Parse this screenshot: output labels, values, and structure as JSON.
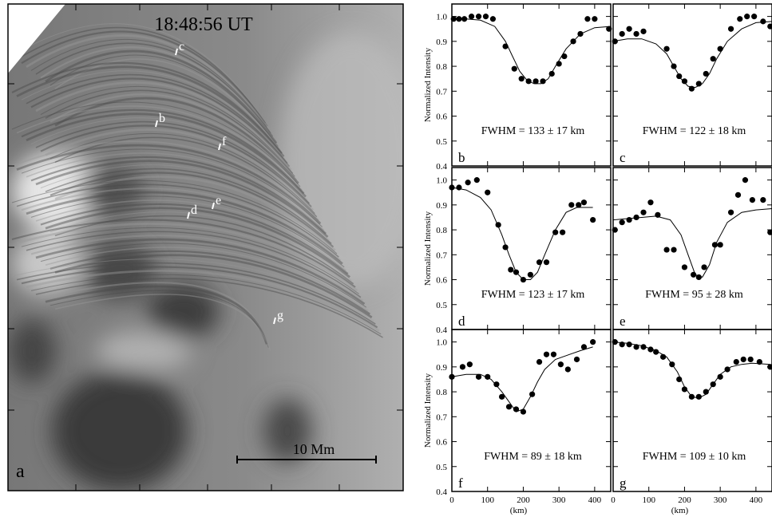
{
  "chart_data": [
    {
      "type": "image",
      "title": "18:48:56 UT",
      "annotations": [
        "c",
        "b",
        "f",
        "d",
        "e",
        "g"
      ],
      "scale_bar": "10 Mm",
      "panel_label": "a"
    },
    {
      "type": "scatter",
      "label": "b",
      "annotation": "FWHM = 133 ± 17 km",
      "ylabel": "Normalized Intensity",
      "color": "#000",
      "xlim": [
        0,
        445
      ],
      "ylim": [
        0.4,
        1.05
      ],
      "xticks": [
        0,
        100,
        200,
        300,
        400
      ],
      "yticks": [
        0.4,
        0.5,
        0.6,
        0.7,
        0.8,
        0.9,
        {
          "value": 1,
          "label": "1.0"
        }
      ],
      "x": [
        5,
        20,
        35,
        55,
        75,
        95,
        115,
        150,
        175,
        195,
        215,
        235,
        255,
        280,
        300,
        315,
        340,
        360,
        380,
        400,
        440
      ],
      "values": [
        0.99,
        0.99,
        0.99,
        1.0,
        1.0,
        1.0,
        0.99,
        0.88,
        0.79,
        0.75,
        0.74,
        0.74,
        0.74,
        0.77,
        0.81,
        0.84,
        0.9,
        0.93,
        0.99,
        0.99,
        0.95
      ],
      "fit_x": [
        0,
        40,
        80,
        120,
        150,
        170,
        190,
        210,
        230,
        250,
        270,
        290,
        320,
        360,
        400,
        445
      ],
      "fit_values": [
        0.99,
        0.99,
        0.985,
        0.96,
        0.9,
        0.84,
        0.78,
        0.745,
        0.73,
        0.73,
        0.75,
        0.8,
        0.87,
        0.93,
        0.955,
        0.96
      ]
    },
    {
      "type": "scatter",
      "label": "c",
      "annotation": "FWHM = 122 ± 18 km",
      "color": "#000",
      "xlim": [
        0,
        445
      ],
      "ylim": [
        0.4,
        1.05
      ],
      "xticks": [
        0,
        100,
        200,
        300,
        400
      ],
      "yticks": [
        0.4,
        0.5,
        0.6,
        0.7,
        0.8,
        0.9,
        1
      ],
      "x": [
        5,
        25,
        45,
        65,
        85,
        150,
        170,
        185,
        200,
        220,
        240,
        260,
        280,
        300,
        330,
        355,
        375,
        395,
        420,
        440
      ],
      "values": [
        0.9,
        0.93,
        0.95,
        0.93,
        0.94,
        0.87,
        0.8,
        0.76,
        0.74,
        0.71,
        0.73,
        0.77,
        0.83,
        0.87,
        0.95,
        0.99,
        1.0,
        1.0,
        0.98,
        0.96
      ],
      "fit_x": [
        0,
        40,
        80,
        120,
        150,
        170,
        190,
        210,
        230,
        250,
        270,
        290,
        320,
        360,
        400,
        445
      ],
      "fit_values": [
        0.9,
        0.91,
        0.91,
        0.89,
        0.85,
        0.8,
        0.75,
        0.72,
        0.715,
        0.73,
        0.77,
        0.83,
        0.9,
        0.95,
        0.975,
        0.98
      ]
    },
    {
      "type": "scatter",
      "label": "d",
      "annotation": "FWHM = 123 ± 17 km",
      "ylabel": "Normalized Intensity",
      "color": "#000",
      "xlim": [
        0,
        445
      ],
      "ylim": [
        0.4,
        1.05
      ],
      "xticks": [
        0,
        100,
        200,
        300,
        400
      ],
      "yticks": [
        0.4,
        0.5,
        0.6,
        0.7,
        0.8,
        0.9,
        {
          "value": 1,
          "label": "1.0"
        }
      ],
      "x": [
        0,
        20,
        45,
        70,
        100,
        130,
        150,
        165,
        180,
        200,
        220,
        245,
        265,
        290,
        310,
        335,
        355,
        370,
        395
      ],
      "values": [
        0.97,
        0.97,
        0.99,
        1.0,
        0.95,
        0.82,
        0.73,
        0.64,
        0.63,
        0.6,
        0.62,
        0.67,
        0.67,
        0.79,
        0.79,
        0.9,
        0.9,
        0.91,
        0.84
      ],
      "fit_x": [
        0,
        40,
        80,
        110,
        140,
        160,
        180,
        200,
        220,
        240,
        260,
        290,
        320,
        350,
        395
      ],
      "fit_values": [
        0.97,
        0.96,
        0.93,
        0.88,
        0.78,
        0.7,
        0.63,
        0.6,
        0.6,
        0.63,
        0.7,
        0.8,
        0.87,
        0.89,
        0.89
      ]
    },
    {
      "type": "scatter",
      "label": "e",
      "annotation": "FWHM = 95 ± 28 km",
      "color": "#000",
      "xlim": [
        0,
        445
      ],
      "ylim": [
        0.4,
        1.05
      ],
      "xticks": [
        0,
        100,
        200,
        300,
        400
      ],
      "yticks": [
        0.4,
        0.5,
        0.6,
        0.7,
        0.8,
        0.9,
        1
      ],
      "x": [
        5,
        25,
        45,
        65,
        85,
        105,
        125,
        150,
        170,
        200,
        225,
        240,
        255,
        285,
        300,
        330,
        350,
        370,
        390,
        420,
        440
      ],
      "values": [
        0.8,
        0.83,
        0.84,
        0.85,
        0.87,
        0.91,
        0.86,
        0.72,
        0.72,
        0.65,
        0.62,
        0.61,
        0.65,
        0.74,
        0.74,
        0.87,
        0.94,
        1.0,
        0.92,
        0.92,
        0.79
      ],
      "fit_x": [
        0,
        40,
        80,
        120,
        160,
        190,
        210,
        230,
        250,
        270,
        290,
        320,
        360,
        400,
        445
      ],
      "fit_values": [
        0.84,
        0.845,
        0.85,
        0.855,
        0.84,
        0.78,
        0.7,
        0.62,
        0.61,
        0.66,
        0.75,
        0.83,
        0.87,
        0.88,
        0.885
      ]
    },
    {
      "type": "scatter",
      "label": "f",
      "annotation": "FWHM = 89 ± 18 km",
      "ylabel": "Normalized Intensity",
      "xlabel": "(km)",
      "color": "#000",
      "xlim": [
        0,
        445
      ],
      "ylim": [
        0.4,
        1.05
      ],
      "xticks": [
        0,
        100,
        200,
        300,
        400
      ],
      "yticks": [
        0.4,
        0.5,
        0.6,
        0.7,
        0.8,
        0.9,
        {
          "value": 1,
          "label": "1.0"
        }
      ],
      "x": [
        0,
        30,
        50,
        75,
        100,
        125,
        140,
        160,
        180,
        200,
        225,
        245,
        265,
        285,
        305,
        325,
        350,
        370,
        395
      ],
      "values": [
        0.86,
        0.9,
        0.91,
        0.86,
        0.86,
        0.83,
        0.78,
        0.74,
        0.73,
        0.72,
        0.79,
        0.92,
        0.95,
        0.95,
        0.91,
        0.89,
        0.93,
        0.98,
        1.0
      ],
      "fit_x": [
        0,
        40,
        80,
        110,
        140,
        160,
        180,
        200,
        220,
        240,
        260,
        290,
        330,
        360,
        395
      ],
      "fit_values": [
        0.86,
        0.87,
        0.87,
        0.85,
        0.8,
        0.76,
        0.72,
        0.73,
        0.78,
        0.84,
        0.89,
        0.93,
        0.95,
        0.965,
        0.98
      ]
    },
    {
      "type": "scatter",
      "label": "g",
      "annotation": "FWHM = 109 ± 10 km",
      "xlabel": "(km)",
      "color": "#000",
      "xlim": [
        0,
        445
      ],
      "ylim": [
        0.4,
        1.05
      ],
      "xticks": [
        0,
        100,
        200,
        300,
        400
      ],
      "yticks": [
        0.4,
        0.5,
        0.6,
        0.7,
        0.8,
        0.9,
        1
      ],
      "x": [
        5,
        25,
        45,
        65,
        85,
        105,
        120,
        140,
        165,
        185,
        200,
        220,
        240,
        260,
        280,
        300,
        320,
        345,
        365,
        385,
        410,
        440
      ],
      "values": [
        1.0,
        0.99,
        0.99,
        0.98,
        0.98,
        0.97,
        0.96,
        0.94,
        0.91,
        0.85,
        0.81,
        0.78,
        0.78,
        0.8,
        0.83,
        0.86,
        0.89,
        0.92,
        0.93,
        0.93,
        0.92,
        0.9
      ],
      "fit_x": [
        0,
        40,
        80,
        120,
        150,
        180,
        200,
        220,
        240,
        260,
        280,
        300,
        330,
        360,
        390,
        440
      ],
      "fit_values": [
        1.0,
        0.995,
        0.985,
        0.965,
        0.94,
        0.88,
        0.82,
        0.78,
        0.775,
        0.79,
        0.83,
        0.87,
        0.9,
        0.91,
        0.915,
        0.91
      ]
    }
  ]
}
